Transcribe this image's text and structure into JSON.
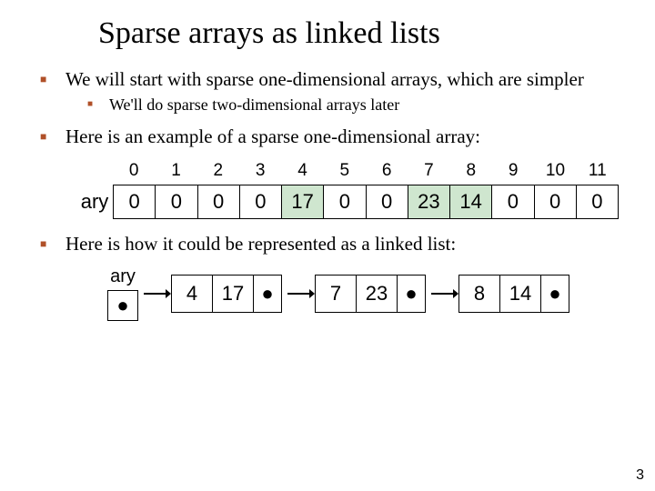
{
  "title": "Sparse arrays as linked lists",
  "bullet_color": "#b05028",
  "highlight_color": "#cfe6cf",
  "points": {
    "p1": "We will start with sparse one-dimensional arrays, which are simpler",
    "p1a": "We'll do sparse two-dimensional arrays later",
    "p2": "Here is an example of a sparse one-dimensional array:",
    "p3": "Here is how it could be represented as a linked list:"
  },
  "array": {
    "label": "ary",
    "indices": [
      "0",
      "1",
      "2",
      "3",
      "4",
      "5",
      "6",
      "7",
      "8",
      "9",
      "10",
      "11"
    ],
    "values": [
      "0",
      "0",
      "0",
      "0",
      "17",
      "0",
      "0",
      "23",
      "14",
      "0",
      "0",
      "0"
    ],
    "highlighted": [
      false,
      false,
      false,
      false,
      true,
      false,
      false,
      true,
      true,
      false,
      false,
      false
    ]
  },
  "linked_list": {
    "label": "ary",
    "nodes": [
      {
        "index": "4",
        "value": "17"
      },
      {
        "index": "7",
        "value": "23"
      },
      {
        "index": "8",
        "value": "14"
      }
    ]
  },
  "slide_number": "3"
}
